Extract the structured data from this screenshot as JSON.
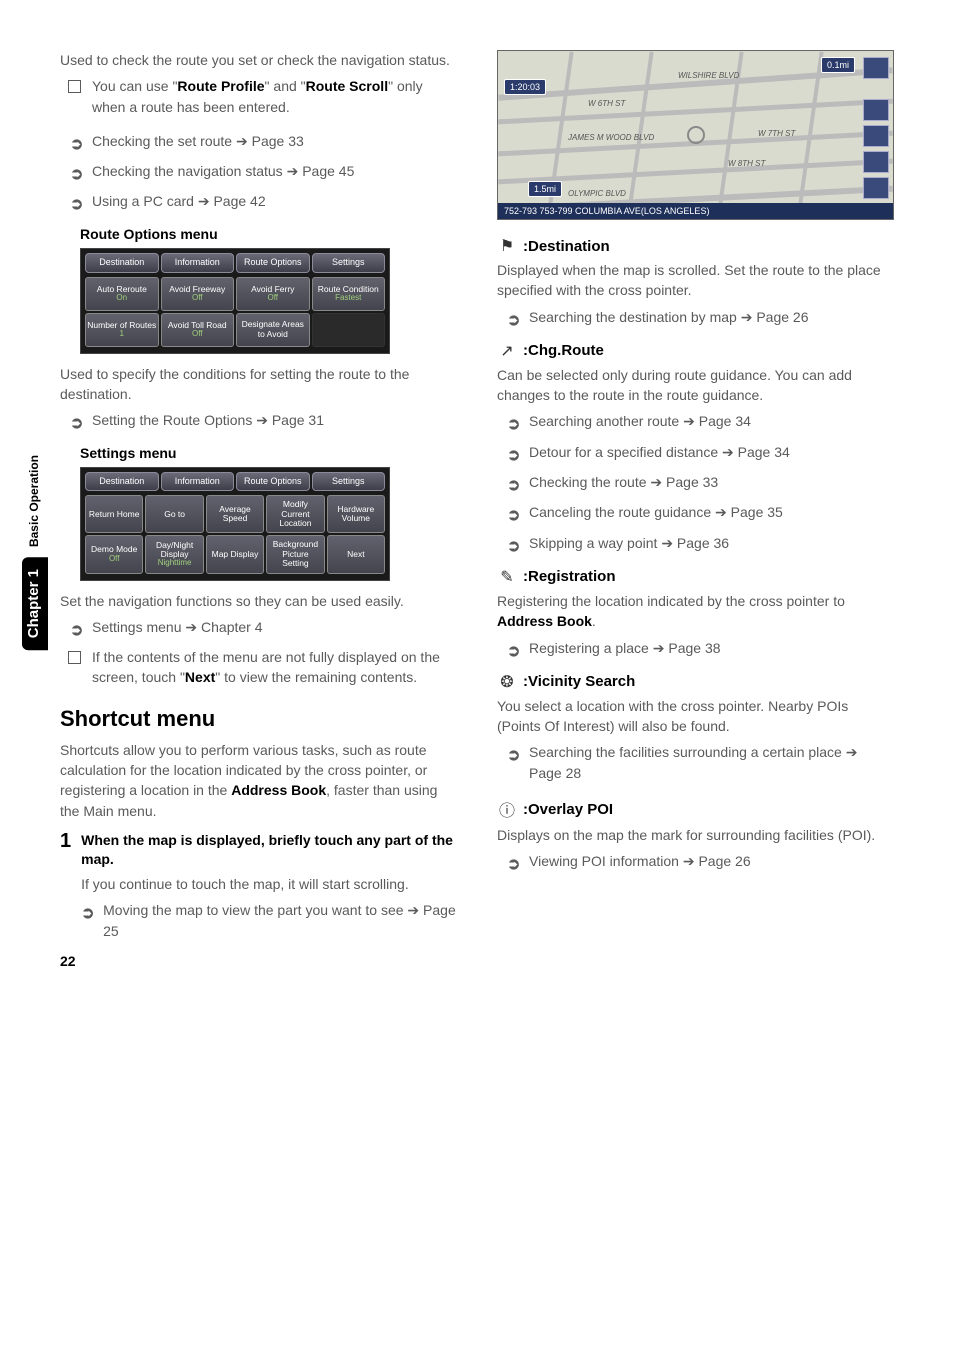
{
  "sideTab": {
    "chapter": "Chapter 1",
    "section": "Basic Operation"
  },
  "pageNumber": "22",
  "left": {
    "intro": "Used to check the route you set or check the navigation status.",
    "note": {
      "pre": "You can use \"",
      "b1": "Route Profile",
      "mid": "\" and \"",
      "b2": "Route Scroll",
      "post": "\" only when a route has been entered."
    },
    "links": [
      {
        "text": "Checking the set route",
        "page": "Page 33"
      },
      {
        "text": "Checking the navigation status",
        "page": "Page 45"
      },
      {
        "text": "Using a PC card",
        "page": "Page 42"
      }
    ],
    "routeOptions": {
      "heading": "Route Options menu",
      "tabs": [
        "Destination",
        "Information",
        "Route Options",
        "Settings"
      ],
      "grid": [
        [
          {
            "t": "Auto Reroute",
            "s": "On"
          },
          {
            "t": "Avoid Freeway",
            "s": "Off"
          },
          {
            "t": "Avoid Ferry",
            "s": "Off"
          },
          {
            "t": "Route Condition",
            "s": "Fastest"
          }
        ],
        [
          {
            "t": "Number of Routes",
            "s": "1"
          },
          {
            "t": "Avoid Toll Road",
            "s": "Off"
          },
          {
            "t": "Designate Areas to Avoid",
            "s": ""
          },
          {
            "t": "",
            "s": "",
            "empty": true
          }
        ]
      ],
      "desc": "Used to specify the conditions for setting the route to the destination.",
      "link": {
        "text": "Setting the Route Options",
        "page": "Page 31"
      }
    },
    "settings": {
      "heading": "Settings menu",
      "tabs": [
        "Destination",
        "Information",
        "Route Options",
        "Settings"
      ],
      "grid": [
        [
          {
            "t": "Return Home",
            "s": ""
          },
          {
            "t": "Go to",
            "s": ""
          },
          {
            "t": "Average Speed",
            "s": ""
          },
          {
            "t": "Modify Current Location",
            "s": ""
          },
          {
            "t": "Hardware Volume",
            "s": ""
          }
        ],
        [
          {
            "t": "Demo Mode",
            "s": "Off"
          },
          {
            "t": "Day/Night Display",
            "s": "Nighttime"
          },
          {
            "t": "Map Display",
            "s": ""
          },
          {
            "t": "Background Picture Setting",
            "s": ""
          },
          {
            "t": "Next",
            "s": ""
          }
        ]
      ],
      "desc": "Set the navigation functions so they can be used easily.",
      "links": [
        {
          "text": "Settings menu",
          "page": "Chapter 4"
        }
      ],
      "noteText": {
        "pre": "If the contents of the menu are not fully displayed on the screen, touch \"",
        "b": "Next",
        "post": "\" to view the remaining contents."
      }
    },
    "shortcut": {
      "heading": "Shortcut menu",
      "intro": {
        "pre": "Shortcuts allow you to perform various tasks, such as route calculation for the location indicated by the cross pointer, or registering a location in the ",
        "b": "Address Book",
        "post": ", faster than using the Main menu."
      },
      "step1": {
        "num": "1",
        "title": "When the map is displayed, briefly touch any part of the map.",
        "body": "If you continue to touch the map, it will start scrolling.",
        "link": {
          "text": "Moving the map to view the part you want to see",
          "page": "Page 25"
        }
      }
    }
  },
  "right": {
    "map": {
      "tl": "1:20:03",
      "tr": "0.1mi",
      "bl": "1.5mi",
      "bottom": "752-793 753-799 COLUMBIA AVE(LOS ANGELES)",
      "roads": [
        "WILSHIRE BLVD",
        "W 6TH ST",
        "JAMES M WOOD BLVD",
        "W 8TH ST",
        "W 7TH ST",
        "OLYMPIC BLVD"
      ]
    },
    "sections": [
      {
        "icon": "⚑",
        "title": ":Destination",
        "body": "Displayed when the map is scrolled. Set the route to the place specified with the cross pointer.",
        "links": [
          {
            "text": "Searching the destination by map",
            "page": "Page 26"
          }
        ]
      },
      {
        "icon": "↗",
        "title": ":Chg.Route",
        "body": "Can be selected only during route guidance. You can add changes to the route in the route guidance.",
        "links": [
          {
            "text": "Searching another route",
            "page": "Page 34"
          },
          {
            "text": "Detour for a specified distance",
            "page": "Page 34"
          },
          {
            "text": "Checking the route",
            "page": "Page 33"
          },
          {
            "text": "Canceling the route guidance",
            "page": "Page 35"
          },
          {
            "text": "Skipping a way point",
            "page": "Page 36"
          }
        ]
      },
      {
        "icon": "✎",
        "title": ":Registration",
        "body": {
          "pre": "Registering the location indicated by the cross pointer to ",
          "b": "Address Book",
          "post": "."
        },
        "links": [
          {
            "text": "Registering a place",
            "page": "Page 38"
          }
        ]
      },
      {
        "icon": "❂",
        "title": ":Vicinity Search",
        "body": "You select a location with the cross pointer. Nearby POIs (Points Of Interest) will also be found.",
        "links": [
          {
            "text": "Searching the facilities surrounding a certain place",
            "page": "Page 28"
          }
        ]
      },
      {
        "icon": "ⓘ",
        "title": ":Overlay POI",
        "body": "Displays on the map the mark for surrounding facilities (POI).",
        "links": [
          {
            "text": "Viewing POI information",
            "page": "Page 26"
          }
        ]
      }
    ]
  }
}
